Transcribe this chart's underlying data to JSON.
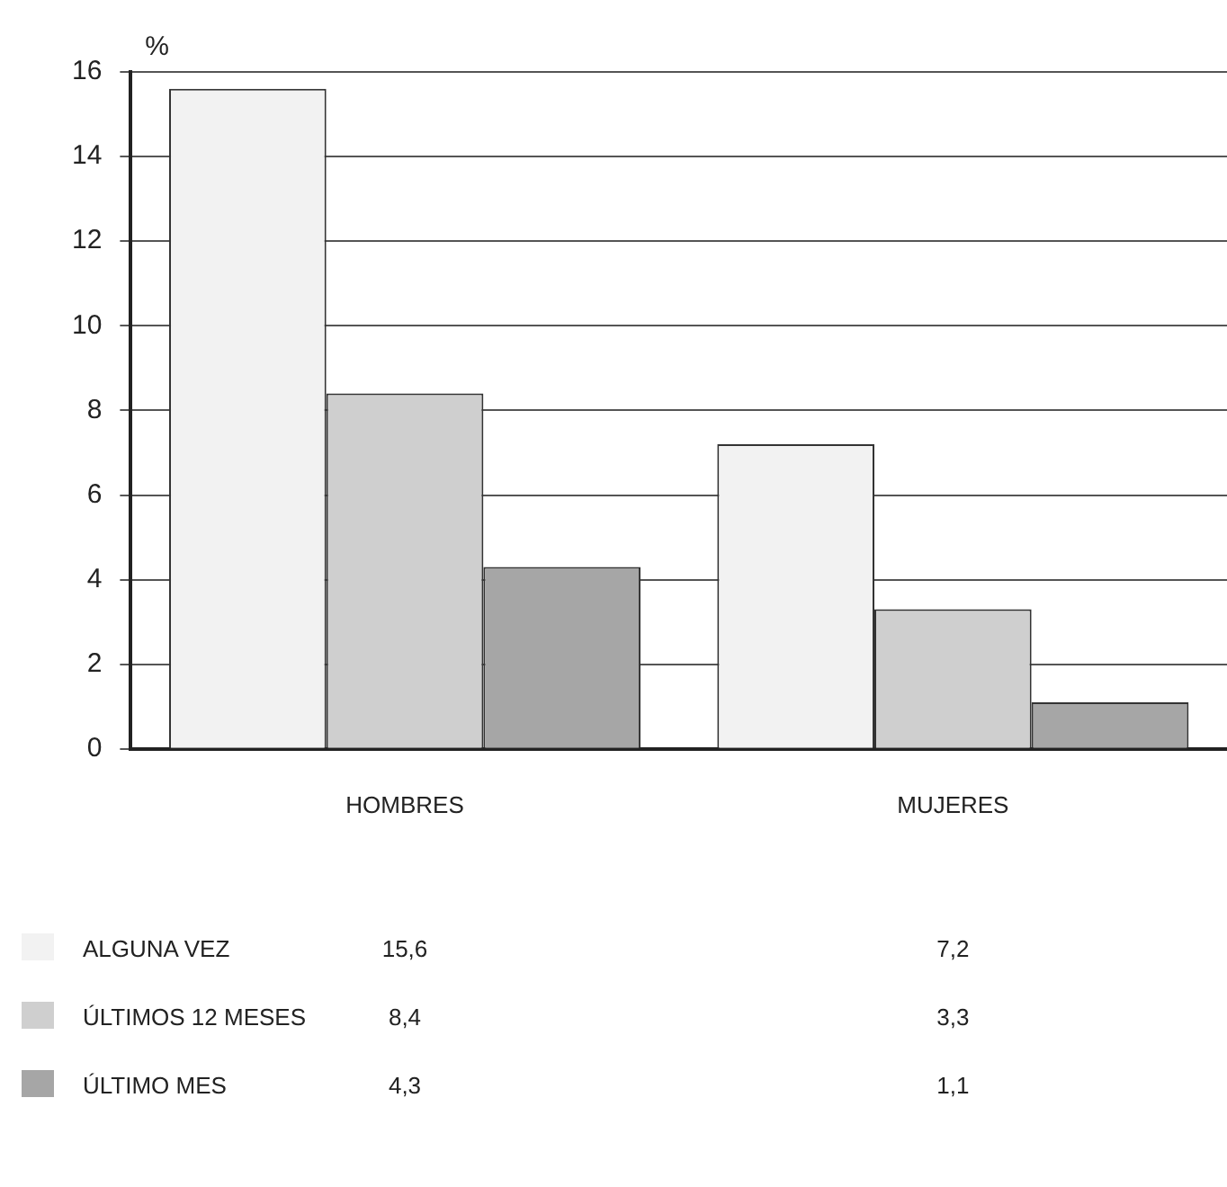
{
  "chart_data": {
    "type": "bar",
    "ylabel": "%",
    "categories": [
      "HOMBRES",
      "MUJERES"
    ],
    "series": [
      {
        "name": "ALGUNA VEZ",
        "color": "#f2f2f2",
        "values": [
          15.6,
          7.2
        ],
        "value_labels": [
          "15,6",
          "7,2"
        ]
      },
      {
        "name": "ÚLTIMOS 12 MESES",
        "color": "#cfcfcf",
        "values": [
          8.4,
          3.3
        ],
        "value_labels": [
          "8,4",
          "3,3"
        ]
      },
      {
        "name": "ÚLTIMO MES",
        "color": "#a6a6a6",
        "values": [
          4.3,
          1.1
        ],
        "value_labels": [
          "4,3",
          "1,1"
        ]
      }
    ],
    "ylim": [
      0,
      16
    ],
    "yticks": [
      0,
      2,
      4,
      6,
      8,
      10,
      12,
      14,
      16
    ],
    "grid": "y",
    "legend": "bottom"
  }
}
